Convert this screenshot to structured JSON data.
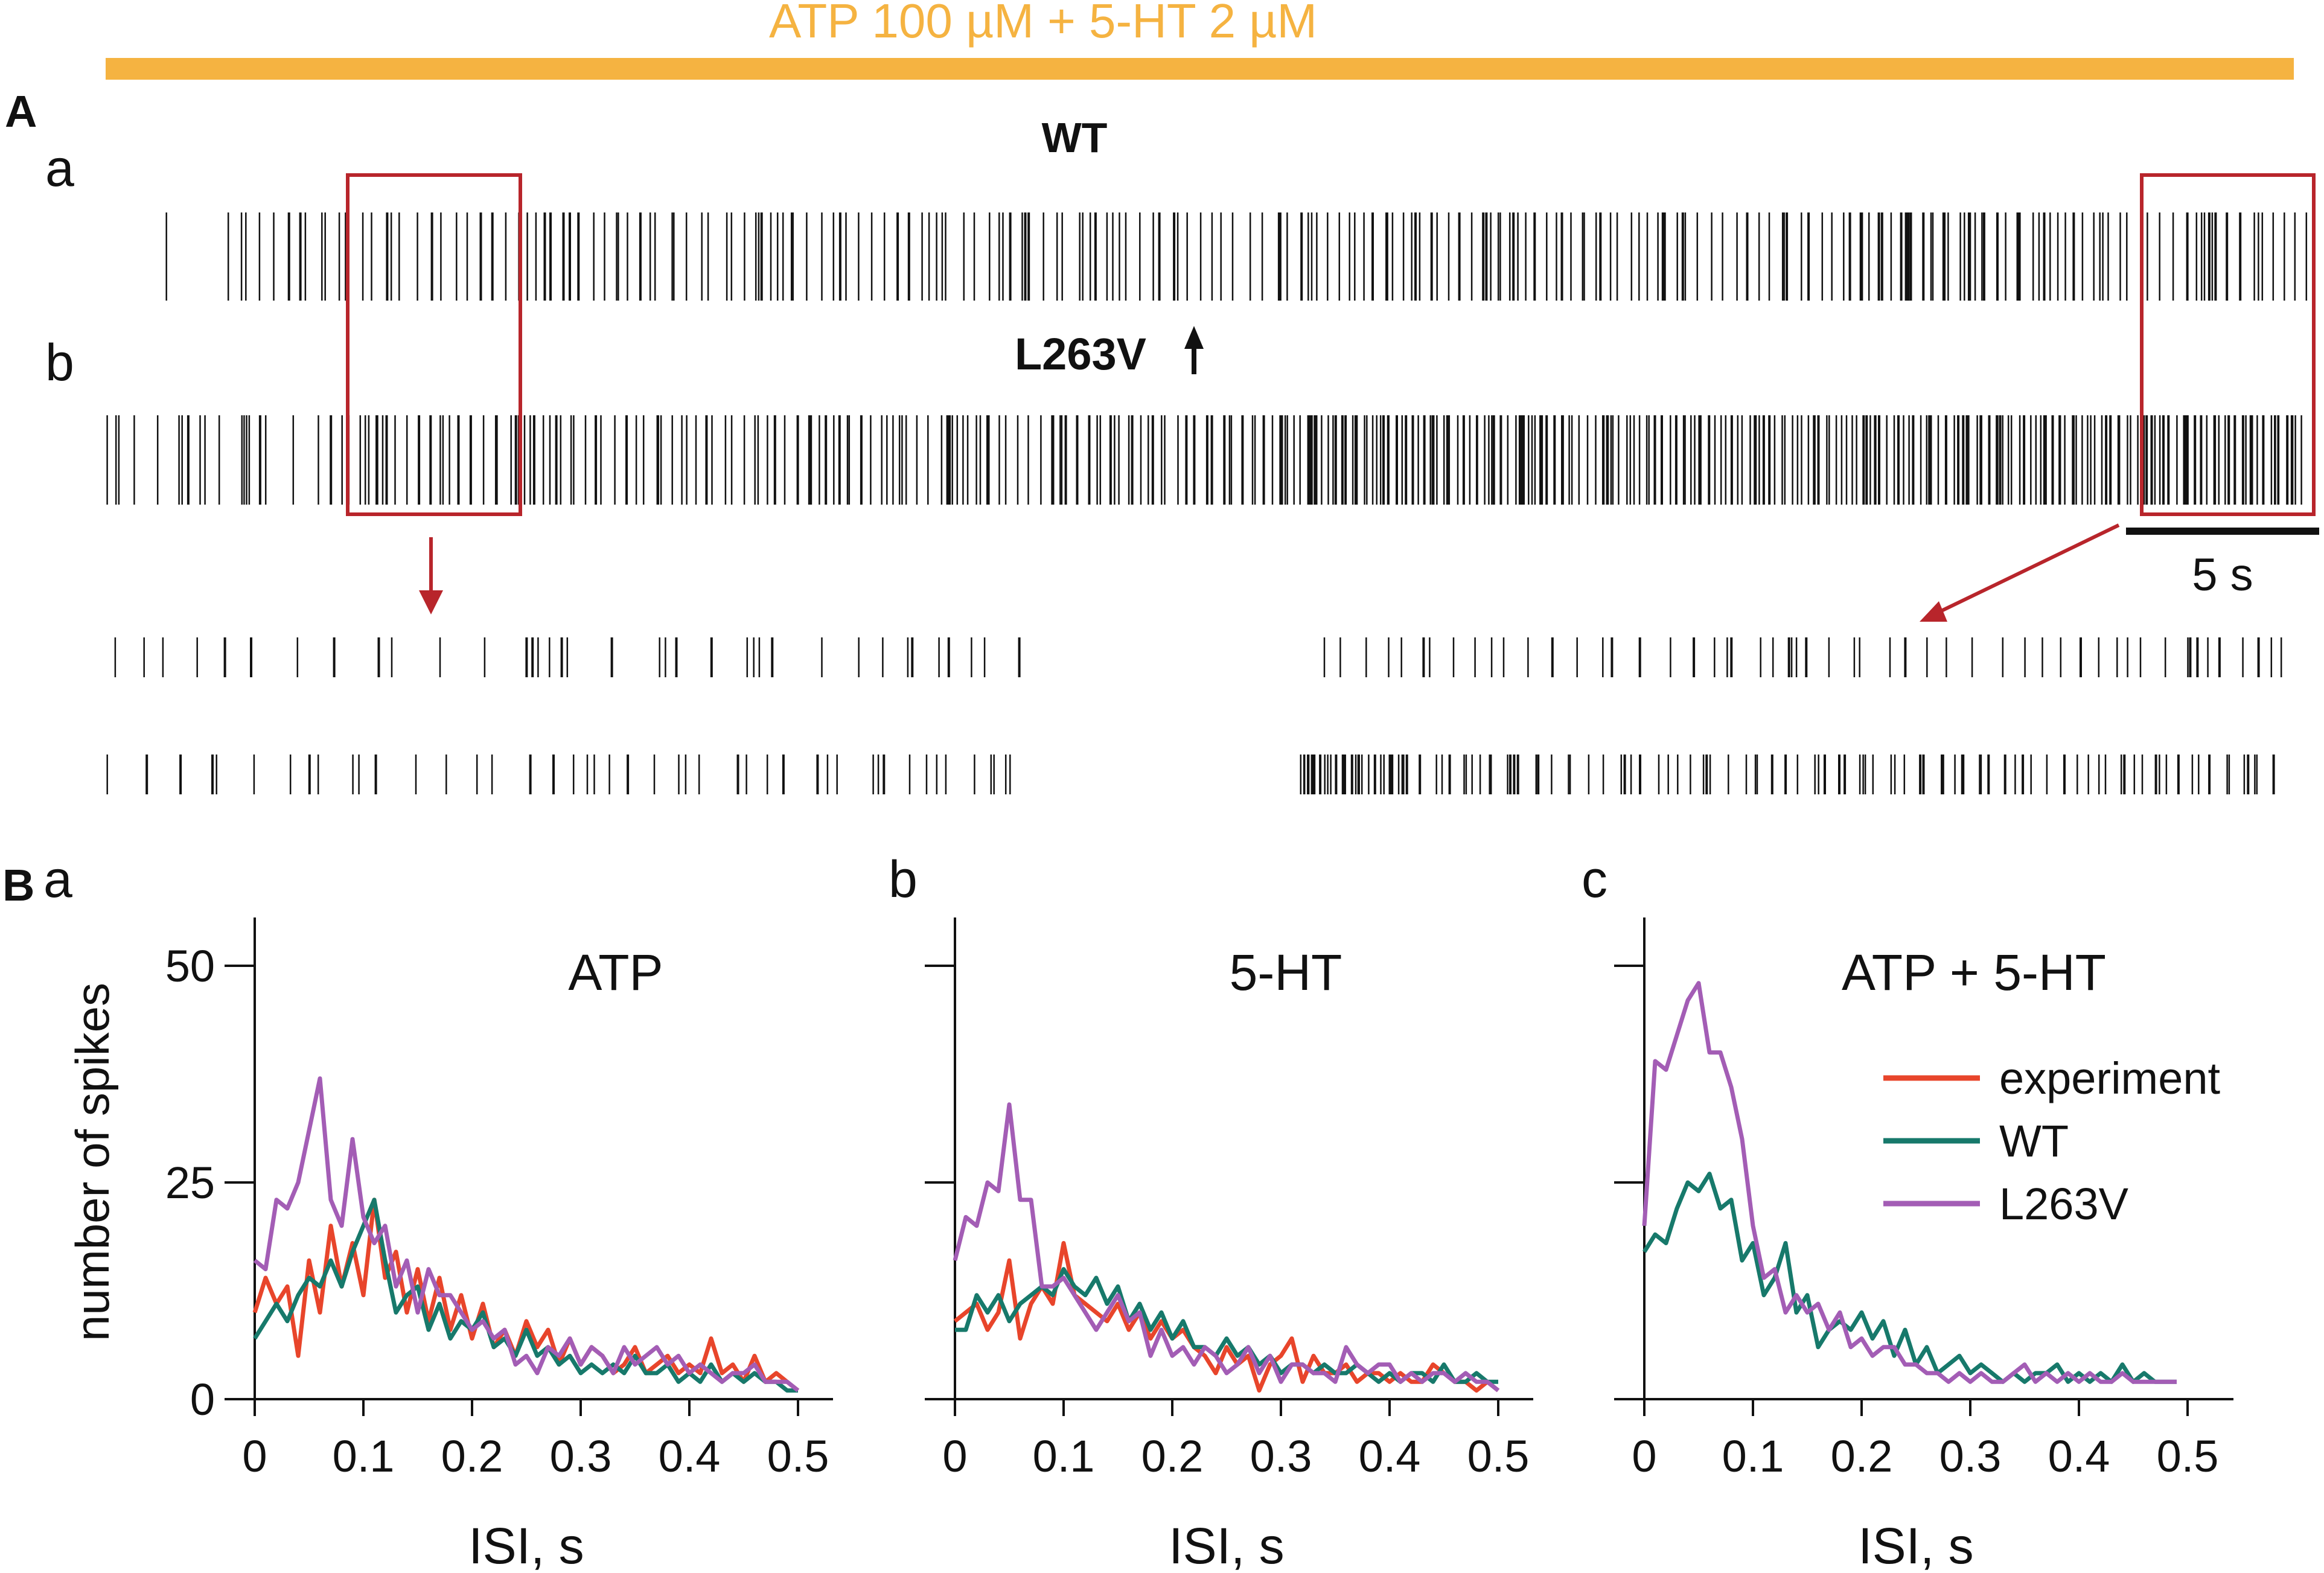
{
  "colors": {
    "treatment_bar": "#F5B341",
    "zoom_box": "#B8252B",
    "spike": "#111111",
    "experiment": "#E8452B",
    "wt": "#17796B",
    "l263v": "#A35DB5"
  },
  "panelA": {
    "label": "A",
    "treatment": "ATP 100 µM + 5-HT 2 µM",
    "row_a": "a",
    "row_b": "b",
    "wt_title": "WT",
    "mut_title": "L263V",
    "up_arrow_icon": "up-arrow-icon",
    "scale_bar": "5 s"
  },
  "panelB": {
    "label": "B",
    "sub": [
      "a",
      "b",
      "c"
    ],
    "ylabel": "number of spikes",
    "xlabel": "ISI, s",
    "legend": [
      "experiment",
      "WT",
      "L263V"
    ]
  },
  "chart_data": [
    {
      "type": "line",
      "title": "ATP",
      "xlabel": "ISI, s",
      "ylabel": "number of spikes",
      "xlim": [
        0,
        0.5
      ],
      "ylim": [
        0,
        55
      ],
      "xticks": [
        "0",
        "0.1",
        "0.2",
        "0.3",
        "0.4",
        "0.5"
      ],
      "yticks": [
        "0",
        "25",
        "50"
      ],
      "x": [
        0,
        0.01,
        0.02,
        0.03,
        0.04,
        0.05,
        0.06,
        0.07,
        0.08,
        0.09,
        0.1,
        0.11,
        0.12,
        0.13,
        0.14,
        0.15,
        0.16,
        0.17,
        0.18,
        0.19,
        0.2,
        0.21,
        0.22,
        0.23,
        0.24,
        0.25,
        0.26,
        0.27,
        0.28,
        0.29,
        0.3,
        0.31,
        0.32,
        0.33,
        0.34,
        0.35,
        0.36,
        0.37,
        0.38,
        0.39,
        0.4,
        0.41,
        0.42,
        0.43,
        0.44,
        0.45,
        0.46,
        0.47,
        0.48,
        0.49,
        0.5
      ],
      "series": [
        {
          "name": "experiment",
          "values": [
            10,
            14,
            11,
            13,
            5,
            16,
            10,
            20,
            13,
            18,
            12,
            23,
            14,
            17,
            10,
            15,
            9,
            14,
            8,
            12,
            7,
            11,
            6,
            8,
            5,
            9,
            6,
            8,
            4,
            7,
            4,
            6,
            5,
            3,
            4,
            6,
            3,
            4,
            5,
            3,
            4,
            3,
            7,
            3,
            4,
            2,
            5,
            2,
            3,
            2,
            1
          ]
        },
        {
          "name": "WT",
          "values": [
            7,
            9,
            11,
            9,
            12,
            14,
            13,
            16,
            13,
            17,
            20,
            23,
            16,
            10,
            12,
            13,
            8,
            11,
            7,
            9,
            8,
            10,
            6,
            7,
            5,
            8,
            5,
            6,
            4,
            5,
            3,
            4,
            3,
            4,
            3,
            5,
            3,
            3,
            4,
            2,
            3,
            2,
            4,
            2,
            3,
            2,
            3,
            2,
            2,
            1,
            1
          ]
        },
        {
          "name": "L263V",
          "values": [
            16,
            15,
            23,
            22,
            25,
            31,
            37,
            23,
            20,
            30,
            21,
            18,
            20,
            13,
            16,
            10,
            15,
            12,
            12,
            10,
            8,
            9,
            7,
            8,
            4,
            5,
            3,
            6,
            5,
            7,
            4,
            6,
            5,
            3,
            6,
            4,
            5,
            6,
            4,
            5,
            3,
            4,
            3,
            2,
            3,
            3,
            4,
            2,
            2,
            2,
            1
          ]
        }
      ]
    },
    {
      "type": "line",
      "title": "5-HT",
      "xlabel": "ISI, s",
      "ylabel": "number of spikes",
      "xlim": [
        0,
        0.5
      ],
      "ylim": [
        0,
        55
      ],
      "xticks": [
        "0",
        "0.1",
        "0.2",
        "0.3",
        "0.4",
        "0.5"
      ],
      "yticks": [
        "0",
        "25",
        "50"
      ],
      "x": [
        0,
        0.01,
        0.02,
        0.03,
        0.04,
        0.05,
        0.06,
        0.07,
        0.08,
        0.09,
        0.1,
        0.11,
        0.12,
        0.13,
        0.14,
        0.15,
        0.16,
        0.17,
        0.18,
        0.19,
        0.2,
        0.21,
        0.22,
        0.23,
        0.24,
        0.25,
        0.26,
        0.27,
        0.28,
        0.29,
        0.3,
        0.31,
        0.32,
        0.33,
        0.34,
        0.35,
        0.36,
        0.37,
        0.38,
        0.39,
        0.4,
        0.41,
        0.42,
        0.43,
        0.44,
        0.45,
        0.46,
        0.47,
        0.48,
        0.49,
        0.5
      ],
      "series": [
        {
          "name": "experiment",
          "values": [
            9,
            10,
            11,
            8,
            10,
            16,
            7,
            11,
            13,
            11,
            18,
            12,
            11,
            10,
            9,
            11,
            8,
            10,
            7,
            9,
            7,
            8,
            6,
            5,
            3,
            6,
            4,
            5,
            1,
            4,
            5,
            7,
            2,
            5,
            3,
            3,
            4,
            2,
            3,
            3,
            2,
            3,
            2,
            2,
            4,
            3,
            2,
            2,
            1,
            2,
            1
          ]
        },
        {
          "name": "WT",
          "values": [
            8,
            8,
            12,
            10,
            12,
            9,
            11,
            12,
            13,
            12,
            15,
            13,
            12,
            14,
            11,
            13,
            9,
            11,
            8,
            10,
            7,
            9,
            6,
            6,
            5,
            7,
            5,
            6,
            4,
            5,
            3,
            4,
            4,
            3,
            4,
            3,
            3,
            4,
            3,
            2,
            3,
            2,
            3,
            3,
            2,
            4,
            2,
            2,
            3,
            2,
            2
          ]
        },
        {
          "name": "L263V",
          "values": [
            16,
            21,
            20,
            25,
            24,
            34,
            23,
            23,
            13,
            13,
            14,
            12,
            10,
            8,
            10,
            12,
            9,
            10,
            5,
            8,
            5,
            6,
            4,
            6,
            5,
            3,
            4,
            6,
            3,
            5,
            2,
            4,
            4,
            3,
            3,
            2,
            6,
            4,
            3,
            4,
            4,
            2,
            3,
            2,
            3,
            3,
            2,
            3,
            2,
            2,
            1
          ]
        }
      ]
    },
    {
      "type": "line",
      "title": "ATP + 5-HT",
      "xlabel": "ISI, s",
      "ylabel": "number of spikes",
      "xlim": [
        0,
        0.5
      ],
      "ylim": [
        0,
        55
      ],
      "xticks": [
        "0",
        "0.1",
        "0.2",
        "0.3",
        "0.4",
        "0.5"
      ],
      "yticks": [
        "0",
        "25",
        "50"
      ],
      "x": [
        0,
        0.01,
        0.02,
        0.03,
        0.04,
        0.05,
        0.06,
        0.07,
        0.08,
        0.09,
        0.1,
        0.11,
        0.12,
        0.13,
        0.14,
        0.15,
        0.16,
        0.17,
        0.18,
        0.19,
        0.2,
        0.21,
        0.22,
        0.23,
        0.24,
        0.25,
        0.26,
        0.27,
        0.28,
        0.29,
        0.3,
        0.31,
        0.32,
        0.33,
        0.34,
        0.35,
        0.36,
        0.37,
        0.38,
        0.39,
        0.4,
        0.41,
        0.42,
        0.43,
        0.44,
        0.45,
        0.46,
        0.47,
        0.48,
        0.49
      ],
      "series": [
        {
          "name": "WT",
          "values": [
            17,
            19,
            18,
            22,
            25,
            24,
            26,
            22,
            23,
            16,
            18,
            12,
            14,
            18,
            10,
            12,
            6,
            8,
            9,
            8,
            10,
            7,
            9,
            5,
            8,
            4,
            6,
            3,
            4,
            5,
            3,
            4,
            3,
            2,
            3,
            2,
            3,
            3,
            4,
            2,
            3,
            2,
            3,
            2,
            4,
            2,
            3,
            2,
            2,
            2
          ]
        },
        {
          "name": "L263V",
          "values": [
            20,
            39,
            38,
            42,
            46,
            48,
            40,
            40,
            36,
            30,
            20,
            14,
            15,
            10,
            12,
            10,
            11,
            8,
            10,
            6,
            7,
            5,
            6,
            6,
            4,
            4,
            3,
            3,
            2,
            3,
            2,
            3,
            2,
            2,
            3,
            4,
            2,
            3,
            2,
            3,
            2,
            3,
            2,
            2,
            3,
            2,
            2,
            2,
            2,
            2
          ]
        }
      ]
    }
  ]
}
